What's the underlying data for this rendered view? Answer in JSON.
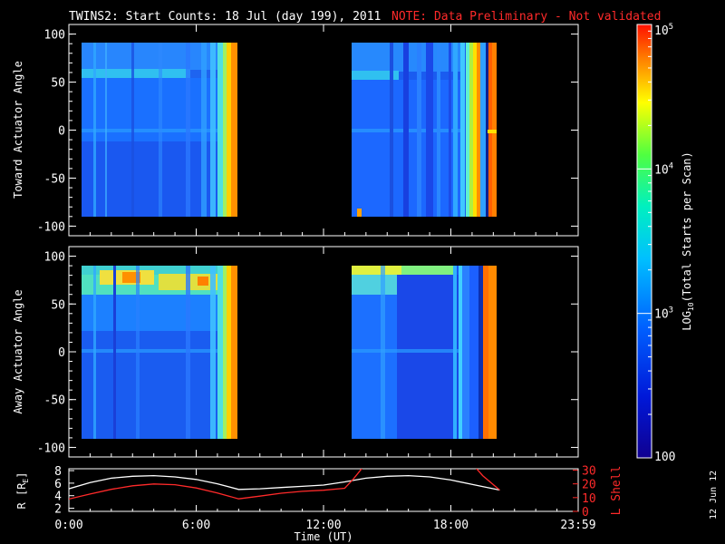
{
  "title": "TWINS2: Start Counts: 18 Jul (day 199), 2011",
  "note": "NOTE: Data Preliminary - Not validated",
  "date_stamp": "12 Jun 12",
  "colors": {
    "background": "#000000",
    "axis": "#ffffff",
    "note": "#ff2a2a",
    "r_line": "#ffffff",
    "l_line": "#ff2a2a"
  },
  "chart_data": [
    {
      "type": "heatmap",
      "name": "toward-panel",
      "ylabel": "Toward Actuator Angle",
      "yticks": [
        "100",
        "50",
        "0",
        "-50",
        "-100"
      ],
      "ytick_values": [
        100,
        50,
        0,
        -50,
        -100
      ],
      "ylim": [
        -110,
        110
      ],
      "xlim": [
        0,
        24
      ],
      "data_blocks": [
        {
          "t_start": 0.0,
          "t_end": 8.0,
          "angle_min": -90,
          "angle_max": 90
        },
        {
          "t_start": 13.0,
          "t_end": 20.3,
          "angle_min": -90,
          "angle_max": 90
        }
      ]
    },
    {
      "type": "heatmap",
      "name": "away-panel",
      "ylabel": "Away Actuator Angle",
      "yticks": [
        "100",
        "50",
        "0",
        "-50",
        "-100"
      ],
      "ytick_values": [
        100,
        50,
        0,
        -50,
        -100
      ],
      "ylim": [
        -110,
        110
      ],
      "xlim": [
        0,
        24
      ],
      "data_blocks": [
        {
          "t_start": 0.0,
          "t_end": 8.0,
          "angle_min": -90,
          "angle_max": 90
        },
        {
          "t_start": 13.0,
          "t_end": 20.3,
          "angle_min": -90,
          "angle_max": 90
        }
      ]
    },
    {
      "type": "line",
      "name": "ephemeris-panel",
      "xlabel": "Time (UT)",
      "xticks": [
        "0:00",
        "6:00",
        "12:00",
        "18:00",
        "23:59"
      ],
      "xtick_values": [
        0,
        6,
        12,
        18,
        24
      ],
      "xlim": [
        0,
        24
      ],
      "ylabel_left": "R [R",
      "ylabel_left_sub": "E",
      "ylabel_left_end": "]",
      "yticks_left": [
        "8",
        "6",
        "4",
        "2"
      ],
      "ytick_values_left": [
        8,
        6,
        4,
        2
      ],
      "ylim_left": [
        1.5,
        8.3
      ],
      "ylabel_right": "L Shell",
      "yticks_right": [
        "30",
        "20",
        "10",
        "0"
      ],
      "ytick_values_right": [
        30,
        20,
        10,
        0
      ],
      "ylim_right": [
        0,
        31
      ],
      "series": [
        {
          "axis": "left",
          "x": [
            0,
            1,
            2,
            3,
            4,
            5,
            6,
            7,
            8,
            9,
            10,
            11,
            12,
            13,
            14,
            15,
            16,
            17,
            18,
            19,
            20.3
          ],
          "y": [
            5.1,
            6.1,
            6.8,
            7.1,
            7.2,
            7.0,
            6.6,
            5.9,
            5.0,
            5.1,
            5.3,
            5.5,
            5.7,
            6.2,
            6.8,
            7.1,
            7.2,
            7.0,
            6.5,
            5.8,
            4.9
          ]
        },
        {
          "axis": "right",
          "x": [
            0,
            1,
            2,
            3,
            4,
            5,
            6,
            7,
            8,
            9,
            10,
            11,
            12,
            13,
            13.4,
            13.9
          ],
          "y": [
            9.0,
            12.6,
            16.0,
            18.6,
            19.9,
            19.4,
            17.0,
            13.4,
            9.1,
            11.1,
            13.2,
            14.6,
            15.4,
            16.8,
            23.5,
            33.0
          ]
        },
        {
          "axis": "right",
          "x": [
            19.1,
            19.5,
            20.3
          ],
          "y": [
            33.0,
            26.0,
            15.5
          ]
        }
      ]
    }
  ],
  "colorbar": {
    "label_main": "LOG",
    "label_sub": "10",
    "label_end": "(Total Starts per Scan)",
    "ticks": [
      {
        "base": "10",
        "exp": "5",
        "value": 100000
      },
      {
        "base": "10",
        "exp": "4",
        "value": 10000
      },
      {
        "base": "10",
        "exp": "3",
        "value": 1000
      },
      {
        "base": "100",
        "exp": "",
        "value": 100
      }
    ],
    "range": [
      100,
      100000
    ]
  }
}
